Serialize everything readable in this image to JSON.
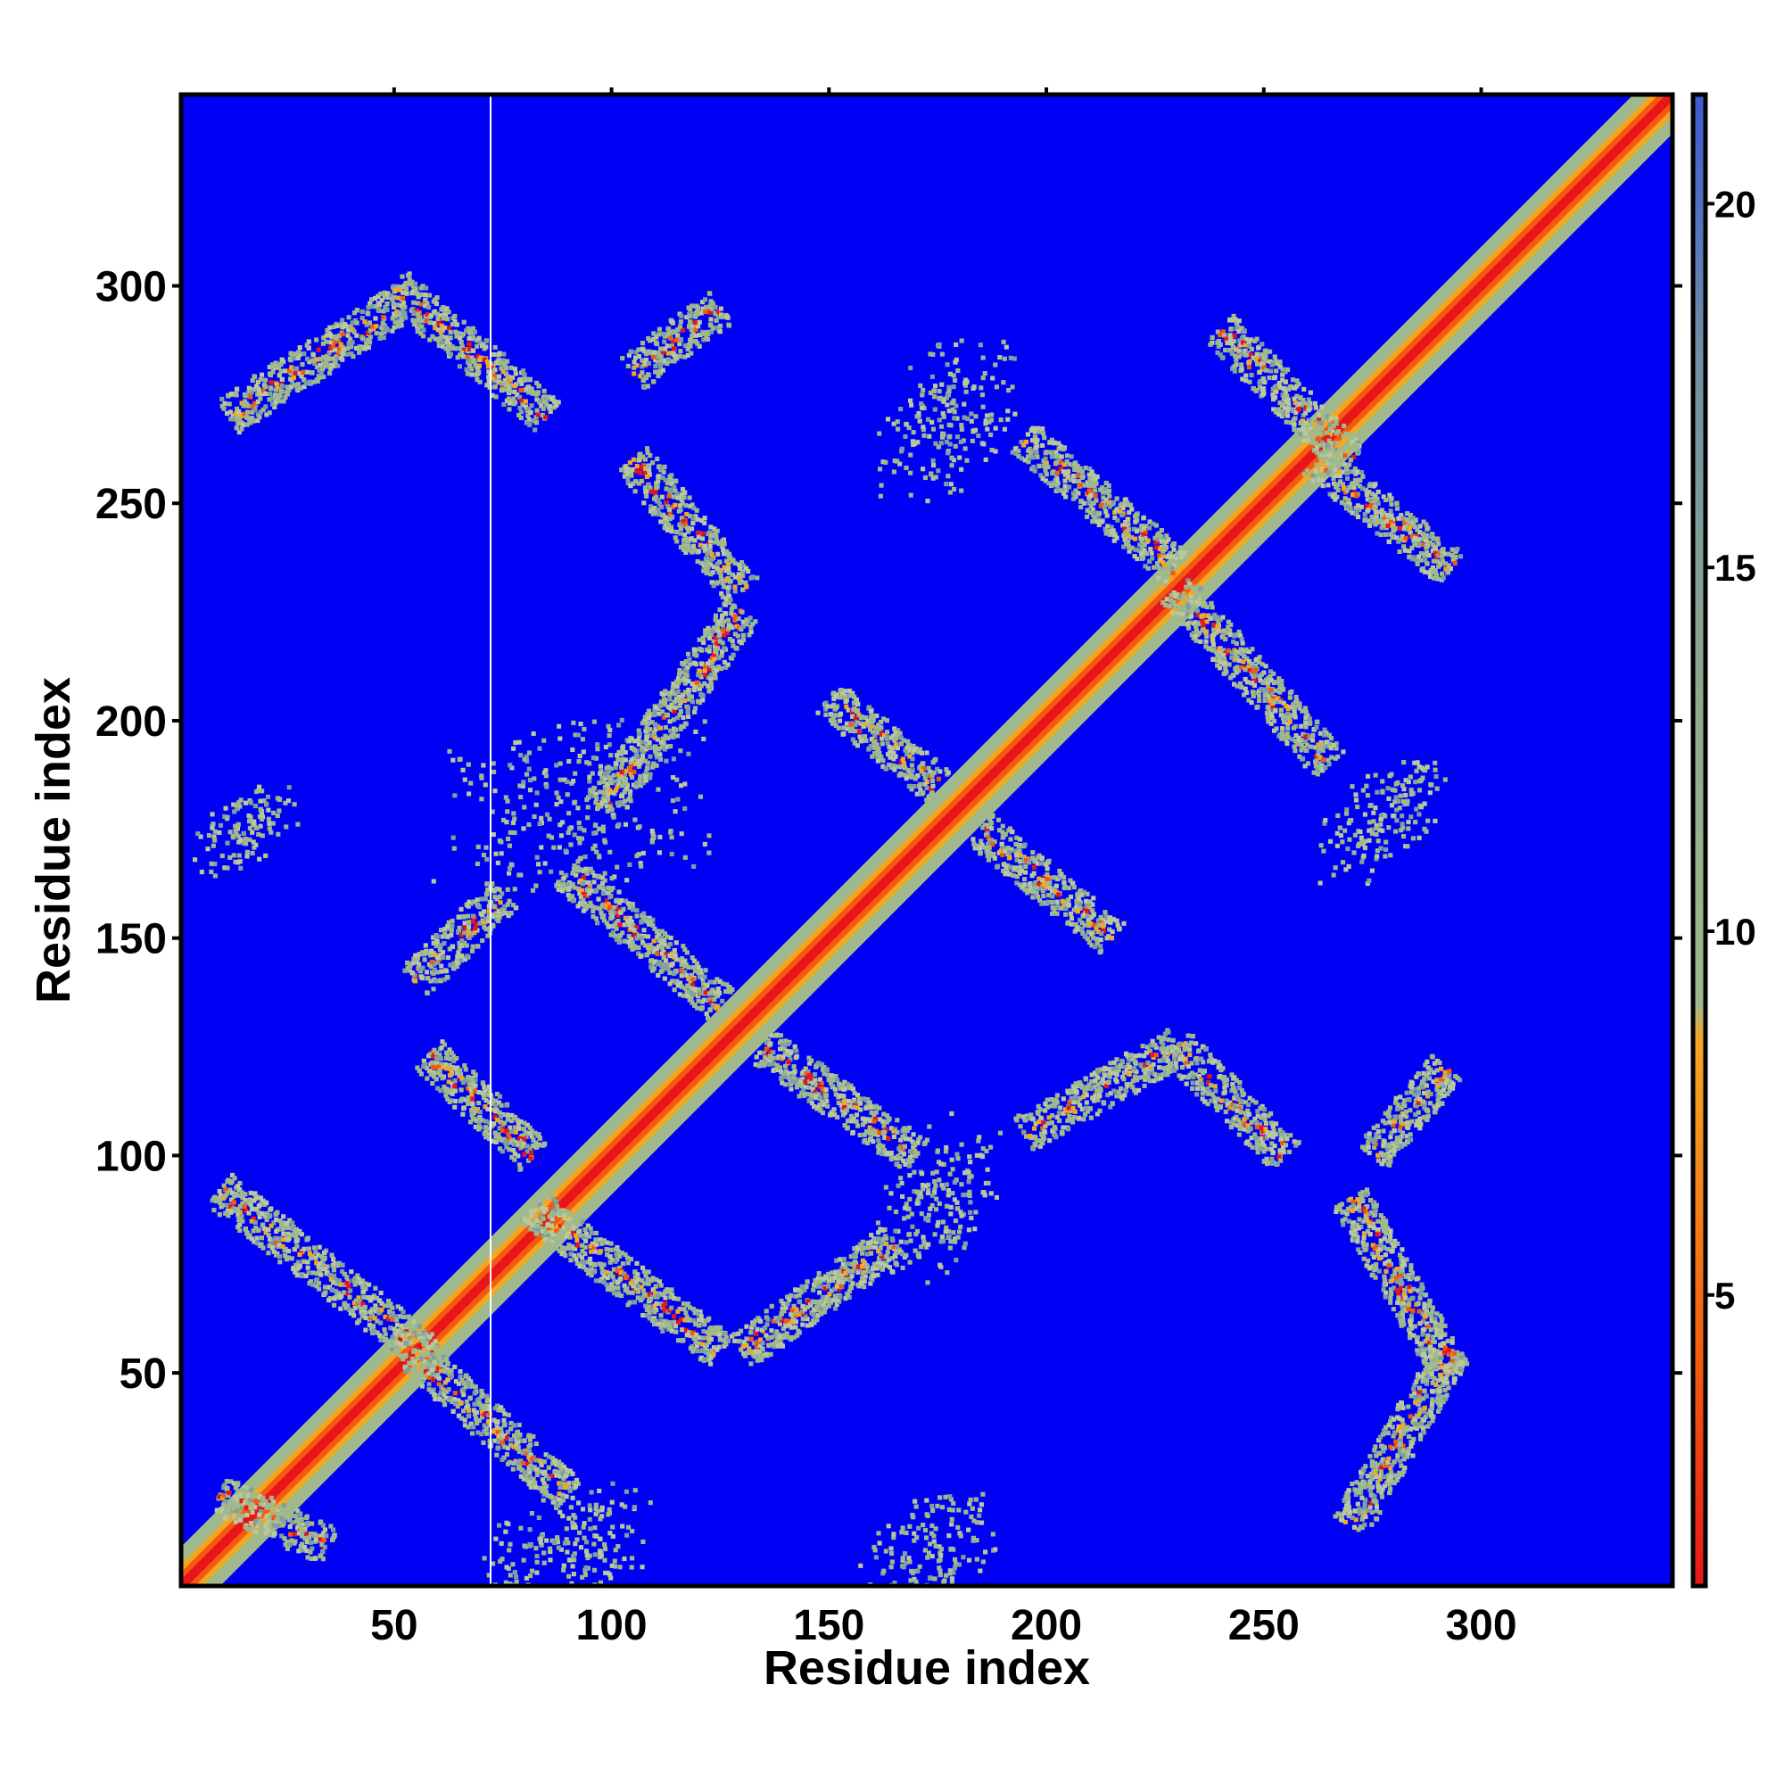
{
  "chart_data": {
    "type": "heatmap",
    "title": "",
    "xlabel": "Residue index",
    "ylabel": "Residue index",
    "xlim": [
      1,
      344
    ],
    "ylim": [
      1,
      344
    ],
    "x_ticks": [
      "50",
      "100",
      "150",
      "200",
      "250",
      "300"
    ],
    "y_ticks": [
      "50",
      "100",
      "150",
      "200",
      "250",
      "300"
    ],
    "x_tick_values": [
      50,
      100,
      150,
      200,
      250,
      300
    ],
    "y_tick_values": [
      50,
      100,
      150,
      200,
      250,
      300
    ],
    "colorbar": {
      "range": [
        1,
        21.5
      ],
      "ticks": [
        "5",
        "10",
        "15",
        "20"
      ],
      "tick_values": [
        5,
        10,
        15,
        20
      ],
      "colors": [
        {
          "value": 1,
          "color": "#e8161b"
        },
        {
          "value": 4,
          "color": "#f35a0f"
        },
        {
          "value": 8.5,
          "color": "#f5a623"
        },
        {
          "value": 9,
          "color": "#9fb98d"
        },
        {
          "value": 13,
          "color": "#8fab8b"
        },
        {
          "value": 18,
          "color": "#6f8fa6"
        },
        {
          "value": 21.5,
          "color": "#3b5bd3"
        }
      ]
    },
    "background_color": "#0000f5",
    "cutoff_note": "distances above cutoff shown as blue",
    "diagonal": {
      "from": 1,
      "to": 344
    },
    "features": [
      {
        "kind": "anti",
        "x0": 10,
        "y0": 92,
        "x1": 58,
        "y1": 54
      },
      {
        "kind": "anti",
        "x0": 55,
        "y0": 54,
        "x1": 90,
        "y1": 22
      },
      {
        "kind": "anti",
        "x0": 58,
        "y0": 123,
        "x1": 82,
        "y1": 100
      },
      {
        "kind": "anti",
        "x0": 82,
        "y0": 88,
        "x1": 125,
        "y1": 55
      },
      {
        "kind": "par",
        "x0": 130,
        "y0": 55,
        "x1": 165,
        "y1": 80
      },
      {
        "kind": "par",
        "x0": 55,
        "y0": 140,
        "x1": 75,
        "y1": 160
      },
      {
        "kind": "anti",
        "x0": 90,
        "y0": 165,
        "x1": 125,
        "y1": 135
      },
      {
        "kind": "anti",
        "x0": 135,
        "y0": 125,
        "x1": 170,
        "y1": 100
      },
      {
        "kind": "par",
        "x0": 98,
        "y0": 180,
        "x1": 130,
        "y1": 225
      },
      {
        "kind": "anti",
        "x0": 105,
        "y0": 260,
        "x1": 130,
        "y1": 230
      },
      {
        "kind": "par",
        "x0": 150,
        "y0": 205,
        "x1": 175,
        "y1": 185
      },
      {
        "kind": "anti",
        "x0": 185,
        "y0": 175,
        "x1": 215,
        "y1": 150
      },
      {
        "kind": "par",
        "x0": 195,
        "y0": 105,
        "x1": 230,
        "y1": 125
      },
      {
        "kind": "anti",
        "x0": 230,
        "y0": 125,
        "x1": 255,
        "y1": 100
      },
      {
        "kind": "anti",
        "x0": 195,
        "y0": 265,
        "x1": 230,
        "y1": 235
      },
      {
        "kind": "anti",
        "x0": 230,
        "y0": 230,
        "x1": 265,
        "y1": 190
      },
      {
        "kind": "anti",
        "x0": 240,
        "y0": 290,
        "x1": 270,
        "y1": 260
      },
      {
        "kind": "anti",
        "x0": 262,
        "y0": 260,
        "x1": 293,
        "y1": 235
      },
      {
        "kind": "par",
        "x0": 12,
        "y0": 270,
        "x1": 50,
        "y1": 295
      },
      {
        "kind": "anti",
        "x0": 50,
        "y0": 300,
        "x1": 85,
        "y1": 270
      },
      {
        "kind": "par",
        "x0": 105,
        "y0": 280,
        "x1": 125,
        "y1": 295
      },
      {
        "kind": "anti",
        "x0": 270,
        "y0": 90,
        "x1": 293,
        "y1": 50
      },
      {
        "kind": "par",
        "x0": 270,
        "y0": 15,
        "x1": 293,
        "y1": 55
      },
      {
        "kind": "par",
        "x0": 275,
        "y0": 100,
        "x1": 292,
        "y1": 120
      },
      {
        "kind": "anti",
        "x0": 10,
        "y0": 22,
        "x1": 35,
        "y1": 10
      },
      {
        "kind": "blob",
        "x0": 10,
        "y0": 170,
        "x1": 22,
        "y1": 180
      },
      {
        "kind": "blob",
        "x0": 170,
        "y0": 80,
        "x1": 180,
        "y1": 100
      },
      {
        "kind": "blob",
        "x0": 165,
        "y0": 5,
        "x1": 182,
        "y1": 15
      },
      {
        "kind": "blob",
        "x0": 80,
        "y0": 5,
        "x1": 100,
        "y1": 15
      },
      {
        "kind": "blob",
        "x0": 270,
        "y0": 170,
        "x1": 285,
        "y1": 185
      },
      {
        "kind": "blob",
        "x0": 75,
        "y0": 175,
        "x1": 110,
        "y1": 185
      },
      {
        "kind": "blob",
        "x0": 170,
        "y0": 260,
        "x1": 185,
        "y1": 280
      }
    ]
  }
}
